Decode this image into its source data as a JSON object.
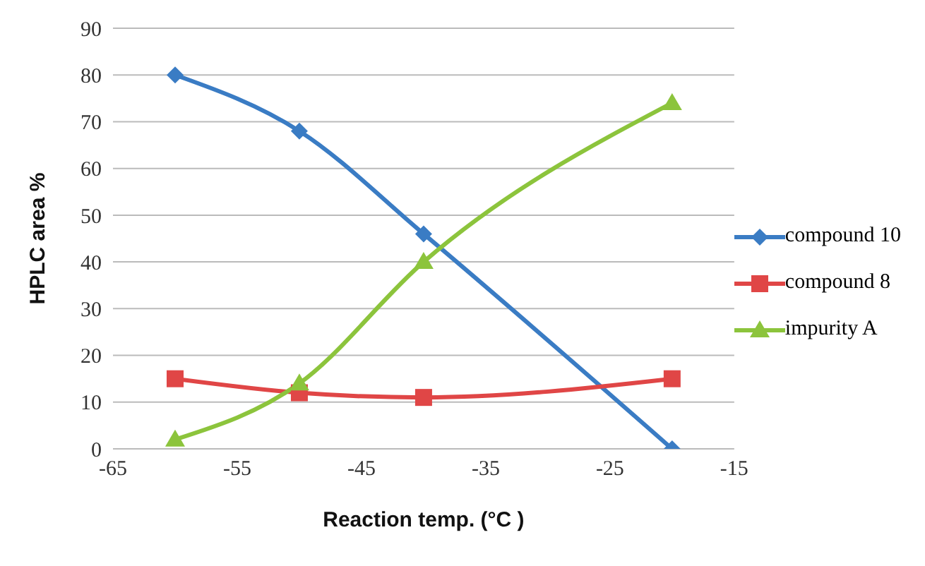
{
  "chart_data": {
    "type": "line",
    "xlabel": "Reaction temp. (°C )",
    "ylabel": "HPLC area %",
    "x": [
      -60,
      -50,
      -40,
      -20
    ],
    "series": [
      {
        "name": "compound 10",
        "color": "#3a7cc4",
        "values": [
          80,
          68,
          46,
          0
        ],
        "marker": "diamond"
      },
      {
        "name": "compound 8",
        "color": "#e04646",
        "values": [
          15,
          12,
          11,
          15
        ],
        "marker": "square"
      },
      {
        "name": "impurity A",
        "color": "#8cc43c",
        "values": [
          2,
          14,
          40,
          74
        ],
        "marker": "triangle"
      }
    ],
    "xlim": [
      -65,
      -15
    ],
    "xticks": [
      -65,
      -55,
      -45,
      -35,
      -25,
      -15
    ],
    "ylim": [
      0,
      90
    ],
    "yticks": [
      0,
      10,
      20,
      30,
      40,
      50,
      60,
      70,
      80,
      90
    ],
    "grid": "y",
    "legend": "right",
    "line_style": "solid"
  }
}
